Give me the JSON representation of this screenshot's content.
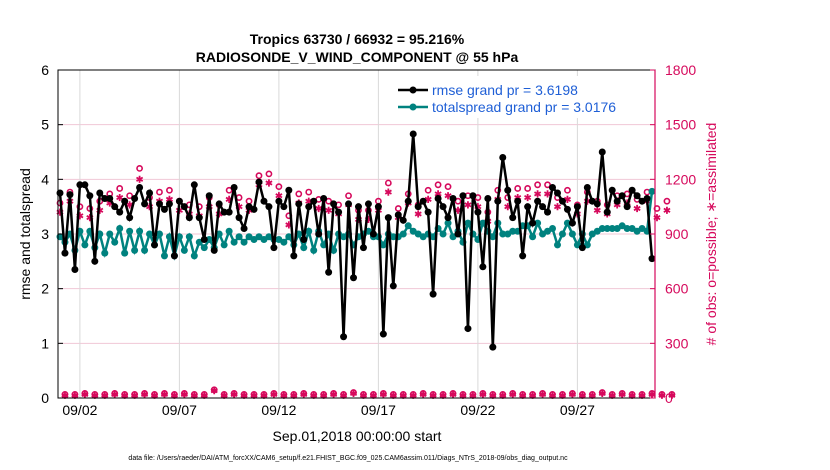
{
  "chart_data": {
    "type": "line",
    "title": "Tropics 63730 / 66932 = 95.216%",
    "subtitle": "RADIOSONDE_V_WIND_COMPONENT @ 55 hPa",
    "xlabel": "Sep.01,2018 00:00:00 start",
    "ylabel": "rmse and totalspread",
    "y2label": "# of obs: o=possible; ∗=assimilated",
    "footer": "data file: /Users/raeder/DAI/ATM_forcXX/CAM6_setup/f.e21.FHIST_BGC.f09_025.CAM6assim.011/Diags_NTrS_2018-09/obs_diag_output.nc",
    "xlim": [
      -0.1,
      29.9
    ],
    "ylim": [
      0,
      6
    ],
    "y2lim": [
      0,
      1800
    ],
    "x_ticks": [
      1,
      6,
      11,
      16,
      21,
      26
    ],
    "x_tick_labels": [
      "09/02",
      "09/07",
      "09/12",
      "09/17",
      "09/22",
      "09/27"
    ],
    "y_ticks": [
      "0",
      "1",
      "2",
      "3",
      "4",
      "5",
      "6"
    ],
    "y2_ticks": [
      "0",
      "300",
      "600",
      "900",
      "1200",
      "1500",
      "1800"
    ],
    "legend_position": "top-right",
    "grid": true,
    "x_step_days": 0.25,
    "colors": {
      "rmse": "#000000",
      "spread": "#00827f",
      "obs": "#d6095c",
      "grid_h": "#f1c7d6",
      "grid_v": "#d9d9d9"
    },
    "series": [
      {
        "name": "rmse grand pr = 3.6198",
        "values": [
          3.75,
          2.65,
          3.72,
          2.35,
          3.9,
          3.9,
          3.7,
          2.5,
          3.75,
          3.65,
          3.65,
          3.5,
          3.4,
          3.6,
          3.3,
          3.65,
          3.85,
          3.55,
          3.75,
          2.8,
          3.55,
          3.45,
          3.55,
          2.6,
          3.6,
          3.5,
          3.3,
          3.9,
          3.3,
          2.9,
          3.7,
          2.7,
          3.55,
          3.4,
          3.4,
          3.85,
          3.3,
          3.1,
          3.5,
          3.45,
          3.95,
          3.6,
          3.5,
          2.75,
          3.6,
          3.5,
          3.8,
          2.6,
          3.55,
          2.9,
          3.5,
          3.6,
          3.0,
          3.65,
          2.3,
          3.55,
          3.4,
          1.12,
          3.55,
          2.2,
          3.5,
          2.75,
          3.55,
          3.0,
          3.5,
          1.17,
          3.3,
          2.05,
          3.35,
          3.25,
          3.6,
          4.83,
          3.5,
          3.6,
          3.4,
          1.9,
          3.65,
          3.5,
          3.3,
          3.65,
          3.0,
          3.7,
          1.27,
          3.7,
          3.4,
          2.4,
          3.65,
          0.93,
          3.6,
          4.4,
          3.8,
          3.3,
          3.6,
          2.6,
          3.5,
          3.2,
          3.6,
          3.5,
          3.4,
          3.85,
          3.75,
          3.6,
          3.45,
          3.2,
          3.5,
          2.75,
          3.85,
          3.6,
          3.55,
          4.5,
          3.4,
          3.8,
          3.6,
          3.7,
          3.5,
          3.8,
          3.7,
          3.6,
          3.65,
          2.55
        ]
      },
      {
        "name": "totalspread grand pr = 3.0176",
        "values": [
          2.95,
          2.85,
          3.0,
          2.7,
          3.05,
          2.8,
          3.05,
          2.75,
          3.0,
          2.65,
          3.0,
          2.85,
          3.1,
          2.65,
          3.05,
          2.7,
          3.05,
          2.7,
          3.0,
          2.8,
          3.0,
          2.6,
          2.95,
          2.6,
          2.95,
          2.7,
          2.95,
          2.6,
          2.85,
          2.75,
          2.9,
          2.75,
          3.0,
          2.8,
          3.05,
          2.85,
          2.95,
          2.85,
          2.95,
          2.9,
          2.95,
          2.9,
          2.95,
          2.9,
          2.9,
          2.85,
          2.95,
          2.8,
          3.0,
          2.75,
          3.05,
          2.7,
          3.05,
          2.8,
          3.0,
          2.7,
          3.0,
          2.95,
          3.0,
          2.8,
          2.95,
          3.0,
          3.05,
          2.95,
          2.95,
          2.8,
          3.0,
          2.95,
          2.95,
          3.0,
          3.15,
          3.05,
          3.0,
          2.95,
          3.0,
          2.95,
          3.1,
          3.0,
          3.2,
          2.95,
          3.05,
          2.85,
          3.2,
          3.0,
          2.9,
          3.2,
          3.05,
          2.95,
          3.2,
          3.0,
          3.0,
          3.05,
          3.05,
          3.15,
          3.15,
          2.95,
          3.2,
          3.0,
          3.05,
          3.1,
          2.8,
          3.0,
          3.2,
          3.0,
          2.8,
          3.0,
          2.8,
          3.0,
          3.05,
          3.1,
          3.1,
          3.1,
          3.1,
          3.15,
          3.1,
          3.1,
          3.05,
          3.1,
          3.05,
          3.78
        ]
      },
      {
        "name": "possible",
        "axis": "right",
        "values": [
          1070,
          20,
          1130,
          20,
          1050,
          25,
          1040,
          20,
          1080,
          20,
          1120,
          25,
          1150,
          20,
          1110,
          20,
          1260,
          25,
          1100,
          20,
          1130,
          25,
          1140,
          20,
          1080,
          25,
          1060,
          20,
          1050,
          20,
          1100,
          45,
          1060,
          20,
          1140,
          25,
          1100,
          20,
          1080,
          20,
          1220,
          20,
          1230,
          25,
          1160,
          20,
          1000,
          20,
          1120,
          25,
          1130,
          20,
          1090,
          20,
          1080,
          25,
          1060,
          20,
          1110,
          30,
          1030,
          20,
          1030,
          20,
          1080,
          25,
          1180,
          20,
          1040,
          20,
          1120,
          20,
          1060,
          25,
          1140,
          20,
          1170,
          20,
          1160,
          25,
          1080,
          20,
          1110,
          20,
          1100,
          25,
          1020,
          20,
          1140,
          20,
          1100,
          25,
          1150,
          20,
          1150,
          20,
          1170,
          25,
          1170,
          20,
          1100,
          20,
          1140,
          25,
          1060,
          20,
          1130,
          20,
          1080,
          30,
          1060,
          20,
          1110,
          25,
          1120,
          20,
          1090,
          20,
          1130,
          25,
          1040,
          20,
          1080,
          20
        ]
      },
      {
        "name": "assimilated",
        "axis": "right",
        "values": [
          1020,
          15,
          1080,
          15,
          1000,
          20,
          990,
          15,
          1030,
          15,
          1070,
          20,
          1100,
          15,
          1060,
          15,
          1200,
          20,
          1050,
          15,
          1080,
          20,
          1090,
          15,
          1030,
          20,
          1010,
          15,
          1000,
          15,
          1050,
          40,
          1010,
          15,
          1090,
          20,
          1050,
          15,
          1030,
          15,
          1170,
          15,
          1180,
          20,
          1110,
          15,
          950,
          15,
          1070,
          20,
          1080,
          15,
          1040,
          15,
          1030,
          20,
          1010,
          15,
          1060,
          25,
          980,
          15,
          980,
          15,
          1030,
          20,
          1130,
          15,
          990,
          15,
          1070,
          15,
          1010,
          20,
          1090,
          15,
          1120,
          15,
          1110,
          20,
          1030,
          15,
          1060,
          15,
          1050,
          20,
          970,
          15,
          1090,
          15,
          1050,
          20,
          1100,
          15,
          1100,
          15,
          1120,
          20,
          1120,
          15,
          1050,
          15,
          1090,
          20,
          1010,
          15,
          1080,
          15,
          1030,
          25,
          1010,
          15,
          1060,
          20,
          1070,
          15,
          1040,
          15,
          1080,
          20,
          990,
          15,
          1030,
          15
        ]
      }
    ]
  }
}
